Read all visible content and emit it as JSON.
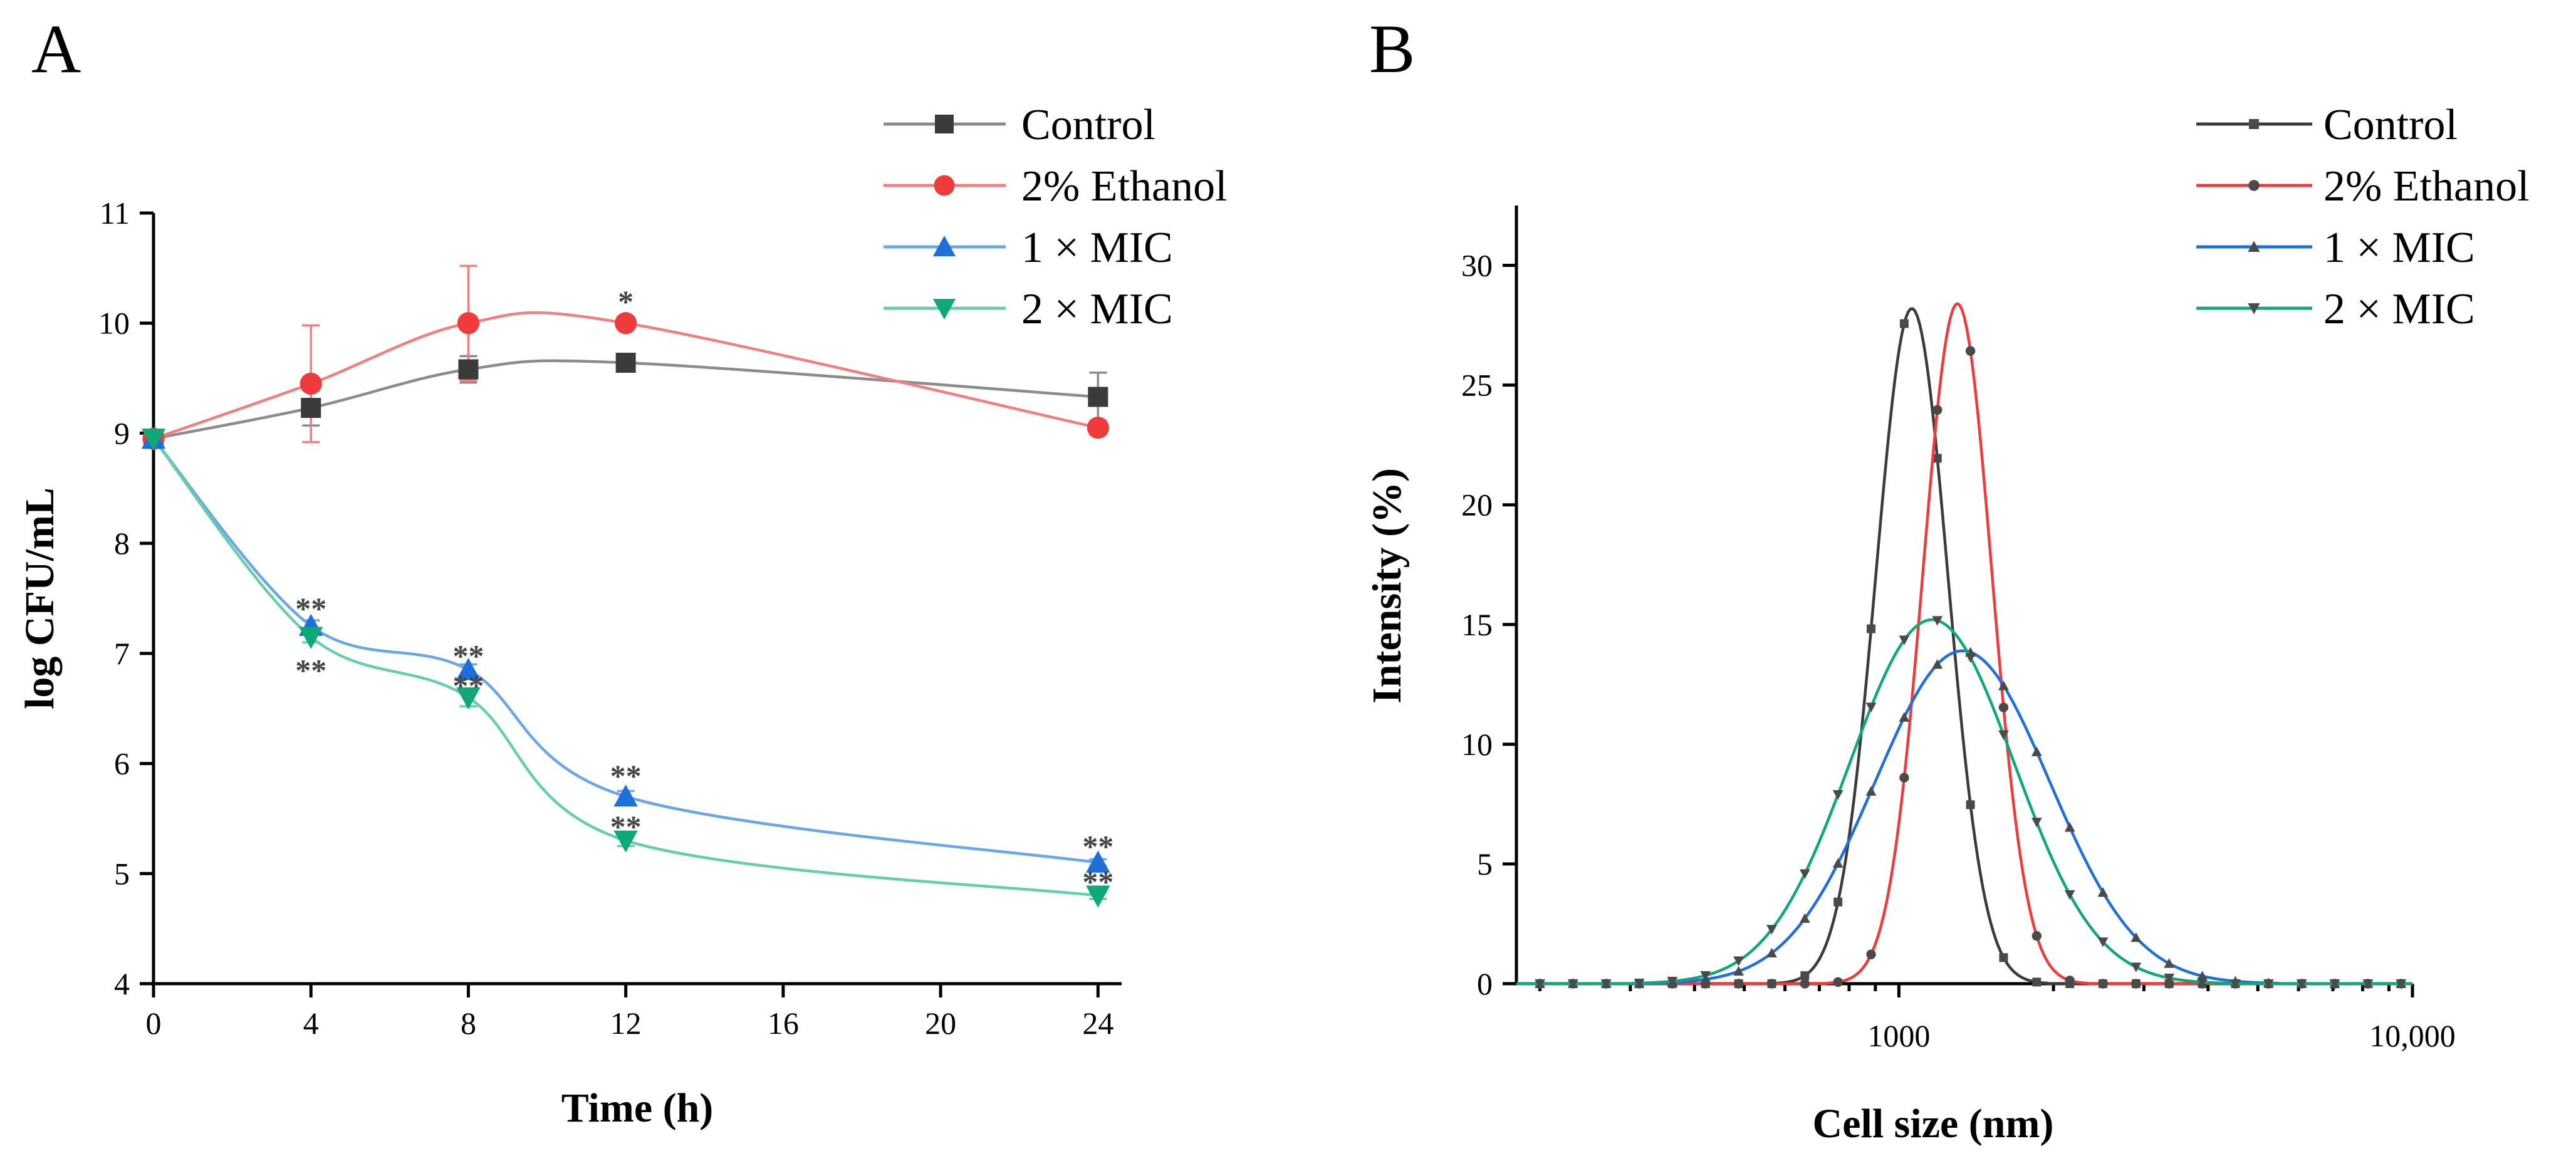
{
  "chart_data": [
    {
      "panel": "A",
      "type": "line",
      "xlabel": "Time (h)",
      "ylabel": "log CFU/mL",
      "xlim": [
        0,
        24.6
      ],
      "ylim": [
        4,
        11
      ],
      "xticks": [
        0,
        4,
        8,
        12,
        16,
        20,
        24
      ],
      "yticks": [
        4,
        5,
        6,
        7,
        8,
        9,
        10,
        11
      ],
      "x": [
        0,
        4,
        8,
        12,
        24
      ],
      "series": [
        {
          "name": "Control",
          "color": "#3b3b3b",
          "line_color": "#8c8c8c",
          "marker": "square",
          "values": [
            8.95,
            9.23,
            9.58,
            9.64,
            9.33
          ],
          "errors": [
            0,
            0.16,
            0.12,
            0,
            0.22
          ]
        },
        {
          "name": "2% Ethanol",
          "color": "#ef3b3b",
          "line_color": "#f08080",
          "marker": "circle",
          "values": [
            8.95,
            9.45,
            10.0,
            10.0,
            9.05
          ],
          "errors": [
            0,
            0.53,
            0.52,
            0,
            0.06
          ]
        },
        {
          "name": "1 × MIC",
          "color": "#1e6fd9",
          "line_color": "#6aa6e8",
          "marker": "triangle-up",
          "values": [
            8.95,
            7.25,
            6.85,
            5.7,
            5.1
          ],
          "errors": [
            0,
            0.05,
            0.05,
            0.05,
            0.03
          ]
        },
        {
          "name": "2 × MIC",
          "color": "#10a878",
          "line_color": "#66cfa8",
          "marker": "triangle-down",
          "values": [
            8.95,
            7.15,
            6.6,
            5.3,
            4.8
          ],
          "errors": [
            0,
            0.05,
            0.08,
            0.05,
            0.03
          ]
        }
      ],
      "annotations": [
        {
          "text": "*",
          "x": 12,
          "y": 10.17
        },
        {
          "text": "**",
          "x": 4,
          "y": 7.38
        },
        {
          "text": "**",
          "x": 4,
          "y": 6.82
        },
        {
          "text": "**",
          "x": 8,
          "y": 6.95
        },
        {
          "text": "**",
          "x": 8,
          "y": 6.68
        },
        {
          "text": "**",
          "x": 12,
          "y": 5.86
        },
        {
          "text": "**",
          "x": 12,
          "y": 5.4
        },
        {
          "text": "**",
          "x": 24,
          "y": 5.22
        },
        {
          "text": "**",
          "x": 24,
          "y": 4.9
        }
      ]
    },
    {
      "panel": "B",
      "type": "line",
      "xscale": "log",
      "xlabel": "Cell size (nm)",
      "ylabel": "Intensity (%)",
      "xlim": [
        180,
        10000
      ],
      "ylim": [
        0,
        32.5
      ],
      "xticks": [
        1000,
        10000
      ],
      "xticklabels": [
        "1000",
        "10,000"
      ],
      "yticks": [
        0,
        5,
        10,
        15,
        20,
        25,
        30
      ],
      "series": [
        {
          "name": "Control",
          "color": "#3b3b3b",
          "marker": "square",
          "peak": 28.2,
          "peak_at": 1060,
          "sigma": 0.07
        },
        {
          "name": "2% Ethanol",
          "color": "#ef3b3b",
          "marker": "circle",
          "peak": 28.4,
          "peak_at": 1300,
          "sigma": 0.067
        },
        {
          "name": "1 × MIC",
          "color": "#1e6fd9",
          "marker": "triangle-up",
          "peak": 13.9,
          "peak_at": 1330,
          "sigma": 0.17
        },
        {
          "name": "2 × MIC",
          "color": "#10a878",
          "marker": "triangle-down",
          "peak": 15.2,
          "peak_at": 1160,
          "sigma": 0.16
        }
      ]
    }
  ]
}
